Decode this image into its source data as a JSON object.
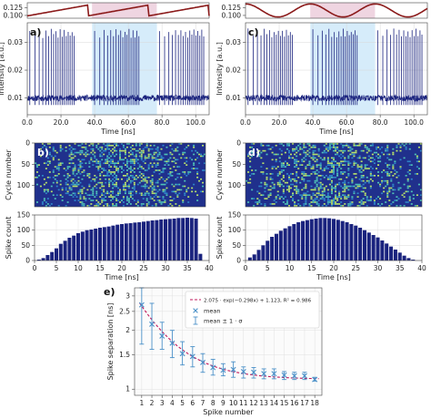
{
  "chart_data": [
    {
      "id": "top-left-modulation",
      "type": "line",
      "yticks": [
        "0.125",
        "0.100"
      ],
      "series_color": "#8b1a1a",
      "shape": "sawtooth"
    },
    {
      "id": "a",
      "type": "line",
      "panel_label": "a)",
      "ylabel": "Intensity [a.u.]",
      "xlabel": "Time [ns]",
      "xticks": [
        "0.0",
        "20.0",
        "40.0",
        "60.0",
        "80.0",
        "100.0"
      ],
      "xlim": [
        0,
        108
      ],
      "yticks": [
        "0.03",
        "0.02",
        "0.01"
      ],
      "ylim": [
        0.004,
        0.037
      ],
      "highlight_x": [
        38.5,
        77
      ],
      "line_color": "#1a237e",
      "baseline": 0.01,
      "spike_peaks": [
        0.035,
        0.033
      ]
    },
    {
      "id": "b",
      "type": "heatmap",
      "panel_label": "b)",
      "ylabel": "Cycle number",
      "yticks": [
        "0",
        "50",
        "100"
      ],
      "ylim": [
        0,
        150
      ]
    },
    {
      "id": "b-hist",
      "type": "bar",
      "ylabel": "Spike count",
      "xlabel": "Time [ns]",
      "xticks": [
        "0",
        "5",
        "10",
        "15",
        "20",
        "25",
        "30",
        "35",
        "40"
      ],
      "xlim": [
        0,
        40
      ],
      "yticks": [
        "0",
        "50",
        "100",
        "150"
      ],
      "ylim": [
        0,
        150
      ],
      "bar_color": "#1a237e",
      "bin_width": 1,
      "x": [
        1,
        2,
        3,
        4,
        5,
        6,
        7,
        8,
        9,
        10,
        11,
        12,
        13,
        14,
        15,
        16,
        17,
        18,
        19,
        20,
        21,
        22,
        23,
        24,
        25,
        26,
        27,
        28,
        29,
        30,
        31,
        32,
        33,
        34,
        35,
        36,
        37,
        38
      ],
      "values": [
        3,
        8,
        18,
        28,
        40,
        55,
        65,
        75,
        82,
        90,
        95,
        100,
        102,
        105,
        108,
        110,
        112,
        115,
        118,
        120,
        122,
        123,
        125,
        126,
        128,
        130,
        132,
        133,
        135,
        136,
        137,
        138,
        140,
        140,
        141,
        140,
        138,
        22
      ]
    },
    {
      "id": "top-right-modulation",
      "type": "line",
      "yticks": [
        "0.125",
        "0.100"
      ],
      "series_color": "#8b1a1a",
      "shape": "sine"
    },
    {
      "id": "c",
      "type": "line",
      "panel_label": "c)",
      "ylabel": "Intensity [a.u.]",
      "xlabel": "Time [ns]",
      "xticks": [
        "0.0",
        "20.0",
        "40.0",
        "60.0",
        "80.0",
        "100.0"
      ],
      "xlim": [
        0,
        108
      ],
      "yticks": [
        "0.03",
        "0.02",
        "0.01"
      ],
      "ylim": [
        0.004,
        0.037
      ],
      "highlight_x": [
        38.5,
        77
      ],
      "line_color": "#1a237e",
      "baseline": 0.01,
      "spike_peaks": [
        0.035,
        0.033
      ]
    },
    {
      "id": "d",
      "type": "heatmap",
      "panel_label": "d)",
      "ylabel": "Cycle number",
      "yticks": [
        "0",
        "50",
        "100"
      ],
      "ylim": [
        0,
        150
      ]
    },
    {
      "id": "d-hist",
      "type": "bar",
      "ylabel": "Spike count",
      "xlabel": "Time [ns]",
      "xticks": [
        "0",
        "5",
        "10",
        "15",
        "20",
        "25",
        "30",
        "35",
        "40"
      ],
      "xlim": [
        0,
        40
      ],
      "yticks": [
        "0",
        "50",
        "100",
        "150"
      ],
      "ylim": [
        0,
        150
      ],
      "bar_color": "#1a237e",
      "bin_width": 1,
      "x": [
        1,
        2,
        3,
        4,
        5,
        6,
        7,
        8,
        9,
        10,
        11,
        12,
        13,
        14,
        15,
        16,
        17,
        18,
        19,
        20,
        21,
        22,
        23,
        24,
        25,
        26,
        27,
        28,
        29,
        30,
        31,
        32,
        33,
        34,
        35,
        36,
        37,
        38
      ],
      "values": [
        10,
        20,
        35,
        50,
        65,
        78,
        88,
        98,
        106,
        113,
        120,
        126,
        130,
        133,
        136,
        138,
        140,
        140,
        139,
        137,
        134,
        130,
        126,
        120,
        115,
        108,
        100,
        92,
        84,
        76,
        66,
        56,
        46,
        36,
        26,
        16,
        8,
        3
      ]
    },
    {
      "id": "e",
      "type": "scatter",
      "panel_label": "e)",
      "ylabel": "Spike separation [ns]",
      "xlabel": "Spike number",
      "xticks": [
        "1",
        "2",
        "3",
        "4",
        "5",
        "6",
        "7",
        "8",
        "9",
        "10",
        "11",
        "12",
        "13",
        "14",
        "15",
        "16",
        "17",
        "18"
      ],
      "xlim": [
        0.3,
        18.7
      ],
      "yscale": "log",
      "yticks": [
        "1",
        "1.5",
        "2",
        "2.5",
        "3"
      ],
      "ytick_values": [
        1,
        1.5,
        2,
        2.5,
        3
      ],
      "ylim": [
        0.93,
        3.3
      ],
      "grid": true,
      "legend_position": "top-right",
      "legend": {
        "fit_label": "2.075 · exp(−0.298x) + 1.123,  R² = 0.986",
        "mean_label": "mean",
        "errorbar_label": "mean ± 1 · σ"
      },
      "fit": {
        "a": 2.075,
        "b": -0.298,
        "c": 1.123,
        "r2": 0.986
      },
      "fit_color": "#c2185b",
      "marker_color": "#4a90c8",
      "series": [
        {
          "name": "mean",
          "x": [
            1,
            2,
            3,
            4,
            5,
            6,
            7,
            8,
            9,
            10,
            11,
            12,
            13,
            14,
            15,
            16,
            17,
            18
          ],
          "values": [
            2.7,
            2.15,
            1.87,
            1.72,
            1.52,
            1.47,
            1.37,
            1.29,
            1.25,
            1.26,
            1.23,
            1.22,
            1.2,
            1.2,
            1.18,
            1.17,
            1.17,
            1.12
          ],
          "error_low": [
            1.7,
            1.6,
            1.6,
            1.45,
            1.33,
            1.3,
            1.22,
            1.18,
            1.17,
            1.15,
            1.14,
            1.14,
            1.13,
            1.13,
            1.12,
            1.12,
            1.12,
            1.1
          ],
          "error_high": [
            3.3,
            2.75,
            2.2,
            2.0,
            1.75,
            1.65,
            1.52,
            1.42,
            1.35,
            1.38,
            1.3,
            1.29,
            1.27,
            1.27,
            1.23,
            1.22,
            1.22,
            1.15
          ]
        }
      ]
    }
  ]
}
